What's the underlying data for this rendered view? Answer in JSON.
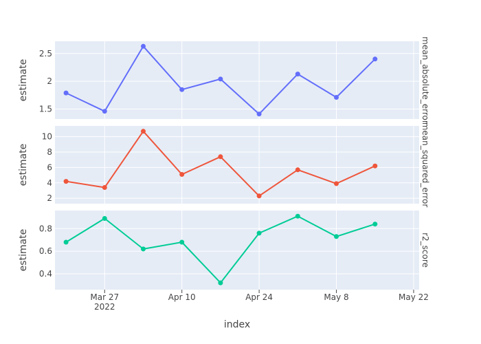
{
  "chart_data": {
    "type": "line",
    "x_axis": {
      "title": "index",
      "range": [
        "2022-03-18",
        "2022-05-23"
      ],
      "ticks": [
        {
          "date": "2022-03-27",
          "label": "Mar 27",
          "sub": "2022"
        },
        {
          "date": "2022-04-10",
          "label": "Apr 10",
          "sub": ""
        },
        {
          "date": "2022-04-24",
          "label": "Apr 24",
          "sub": ""
        },
        {
          "date": "2022-05-08",
          "label": "May 8",
          "sub": ""
        },
        {
          "date": "2022-05-22",
          "label": "May 22",
          "sub": ""
        }
      ]
    },
    "x": [
      "2022-03-20",
      "2022-03-27",
      "2022-04-03",
      "2022-04-10",
      "2022-04-17",
      "2022-04-24",
      "2022-05-01",
      "2022-05-08",
      "2022-05-15"
    ],
    "panels": [
      {
        "facet_label": "mean_absolute_error",
        "ylabel": "estimate",
        "ylim": [
          1.32,
          2.72
        ],
        "yticks": [
          1.5,
          2,
          2.5
        ],
        "ytick_labels": [
          "1.5",
          "2",
          "2.5"
        ],
        "color": "#636efa",
        "values": [
          1.79,
          1.46,
          2.63,
          1.85,
          2.04,
          1.41,
          2.13,
          1.71,
          2.4
        ]
      },
      {
        "facet_label": "mean_squared_error",
        "ylabel": "estimate",
        "ylim": [
          1.3,
          11.4
        ],
        "yticks": [
          2,
          4,
          6,
          8,
          10
        ],
        "ytick_labels": [
          "2",
          "4",
          "6",
          "8",
          "10"
        ],
        "color": "#ef553b",
        "values": [
          4.2,
          3.4,
          10.7,
          5.1,
          7.4,
          2.3,
          5.7,
          3.9,
          6.2
        ]
      },
      {
        "facet_label": "r2_score",
        "ylabel": "estimate",
        "ylim": [
          0.26,
          0.96
        ],
        "yticks": [
          0.4,
          0.6,
          0.8
        ],
        "ytick_labels": [
          "0.4",
          "0.6",
          "0.8"
        ],
        "color": "#00cc96",
        "values": [
          0.68,
          0.89,
          0.62,
          0.68,
          0.32,
          0.76,
          0.91,
          0.73,
          0.84
        ]
      }
    ],
    "grid": true
  }
}
